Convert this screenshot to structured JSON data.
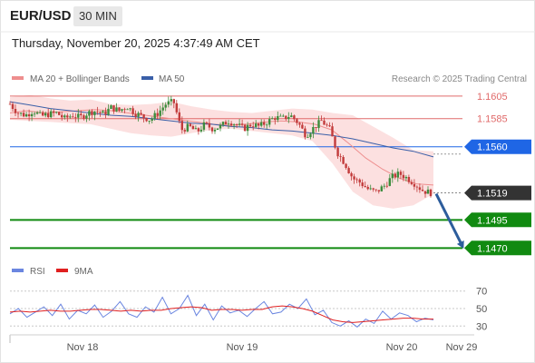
{
  "header": {
    "symbol": "EUR/USD",
    "timeframe": "30 MIN",
    "timestamp": "Thursday, November 20, 2025 4:37:49 AM CET"
  },
  "chart_data": [
    {
      "type": "candlestick",
      "legend": [
        {
          "name": "MA 20 + Bollinger Bands",
          "color": "#ee8e8e"
        },
        {
          "name": "MA 50",
          "color": "#3a5fa8"
        }
      ],
      "credit": "Research © 2025 Trading Central",
      "ylim": [
        1.1463,
        1.1613
      ],
      "x_ticks": [
        "Nov 18",
        "Nov 19",
        "Nov 20",
        "Nov 29"
      ],
      "levels": [
        {
          "value": 1.1605,
          "label": "1.1605",
          "kind": "resistance",
          "color": "#e06a6a"
        },
        {
          "value": 1.1585,
          "label": "1.1585",
          "kind": "resistance",
          "color": "#e06a6a"
        },
        {
          "value": 1.156,
          "label": "1.1560",
          "kind": "pivot",
          "color": "#1f66e5"
        },
        {
          "value": 1.1519,
          "label": "1.1519",
          "kind": "last_price",
          "color": "#333333"
        },
        {
          "value": 1.1495,
          "label": "1.1495",
          "kind": "target",
          "color": "#118a11"
        },
        {
          "value": 1.147,
          "label": "1.1470",
          "kind": "target",
          "color": "#118a11"
        }
      ],
      "close_path": [
        1.1598,
        1.159,
        1.1588,
        1.1592,
        1.1587,
        1.1589,
        1.159,
        1.1585,
        1.1588,
        1.1586,
        1.159,
        1.1592,
        1.1589,
        1.1595,
        1.1592,
        1.1596,
        1.159,
        1.1587,
        1.1584,
        1.159,
        1.1598,
        1.16,
        1.1575,
        1.1578,
        1.1573,
        1.158,
        1.1576,
        1.1578,
        1.1583,
        1.158,
        1.1576,
        1.158,
        1.1578,
        1.1582,
        1.1586,
        1.1585,
        1.1588,
        1.1581,
        1.157,
        1.1577,
        1.1583,
        1.1576,
        1.1555,
        1.1545,
        1.1532,
        1.1528,
        1.1522,
        1.152,
        1.1525,
        1.1533,
        1.1536,
        1.1532,
        1.1527,
        1.1521,
        1.1519
      ],
      "ma20": [
        1.159,
        1.1592,
        1.159,
        1.1591,
        1.1592,
        1.1593,
        1.1592,
        1.159,
        1.1588,
        1.1586,
        1.1584,
        1.1582,
        1.158,
        1.1579,
        1.158,
        1.1582,
        1.1583,
        1.1582,
        1.158,
        1.1575,
        1.1563,
        1.155,
        1.154,
        1.1532,
        1.1527,
        1.1526
      ],
      "ma50": [
        1.16,
        1.1597,
        1.1594,
        1.1592,
        1.159,
        1.1588,
        1.1587,
        1.1585,
        1.1583,
        1.1581,
        1.158,
        1.1578,
        1.1577,
        1.1575,
        1.1574,
        1.1572,
        1.157,
        1.1567,
        1.1563,
        1.1559,
        1.1556,
        1.1551
      ],
      "bb_upper": [
        1.1604,
        1.1606,
        1.1603,
        1.1601,
        1.1602,
        1.1598,
        1.1597,
        1.1598,
        1.16,
        1.1596,
        1.1593,
        1.1591,
        1.159,
        1.1592,
        1.1594,
        1.1593,
        1.159,
        1.1588,
        1.1578,
        1.1568,
        1.1557,
        1.1556
      ],
      "bb_lower": [
        1.1584,
        1.1583,
        1.1582,
        1.1581,
        1.158,
        1.1576,
        1.1572,
        1.157,
        1.1569,
        1.1572,
        1.1575,
        1.1576,
        1.1574,
        1.1572,
        1.157,
        1.1565,
        1.1545,
        1.152,
        1.1508,
        1.1505,
        1.1508,
        1.1518
      ],
      "forecast": {
        "from": 1.1519,
        "to": 1.147
      }
    },
    {
      "type": "line",
      "legend": [
        {
          "name": "RSI",
          "color": "#6b86e0"
        },
        {
          "name": "9MA",
          "color": "#e02020"
        }
      ],
      "ylim": [
        22,
        78
      ],
      "y_ticks": [
        70,
        50,
        30
      ],
      "series": [
        {
          "name": "RSI",
          "values": [
            44,
            50,
            40,
            46,
            52,
            42,
            55,
            38,
            48,
            44,
            54,
            40,
            47,
            58,
            44,
            40,
            52,
            46,
            63,
            44,
            50,
            65,
            42,
            55,
            37,
            53,
            45,
            48,
            41,
            50,
            58,
            44,
            46,
            55,
            50,
            61,
            43,
            48,
            34,
            30,
            36,
            29,
            38,
            33,
            47,
            38,
            45,
            42,
            35,
            39,
            37
          ]
        },
        {
          "name": "9MA",
          "values": [
            46,
            47,
            46,
            47,
            48,
            47,
            47,
            48,
            49,
            49,
            48,
            47,
            48,
            47,
            48,
            48,
            50,
            51,
            52,
            51,
            48,
            49,
            49,
            48,
            49,
            49,
            52,
            53,
            52,
            50,
            47,
            42,
            37,
            35,
            34,
            35,
            36,
            37,
            38,
            39,
            39,
            38,
            38
          ]
        }
      ]
    }
  ]
}
